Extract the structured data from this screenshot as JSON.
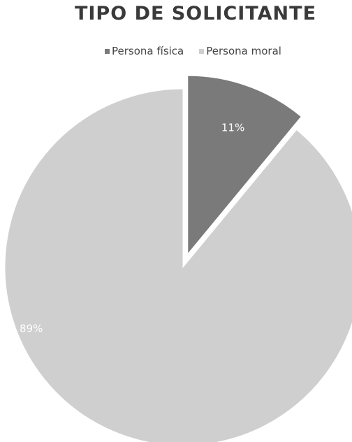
{
  "chart_data": {
    "type": "pie",
    "title": "TIPO DE SOLICITANTE",
    "series": [
      {
        "name": "Persona física",
        "value": 11,
        "label": "11%",
        "color": "#7a7a7a"
      },
      {
        "name": "Persona moral",
        "value": 89,
        "label": "89%",
        "color": "#cfcfcf"
      }
    ],
    "legend_position": "top",
    "exploded_slice": "Persona física"
  }
}
